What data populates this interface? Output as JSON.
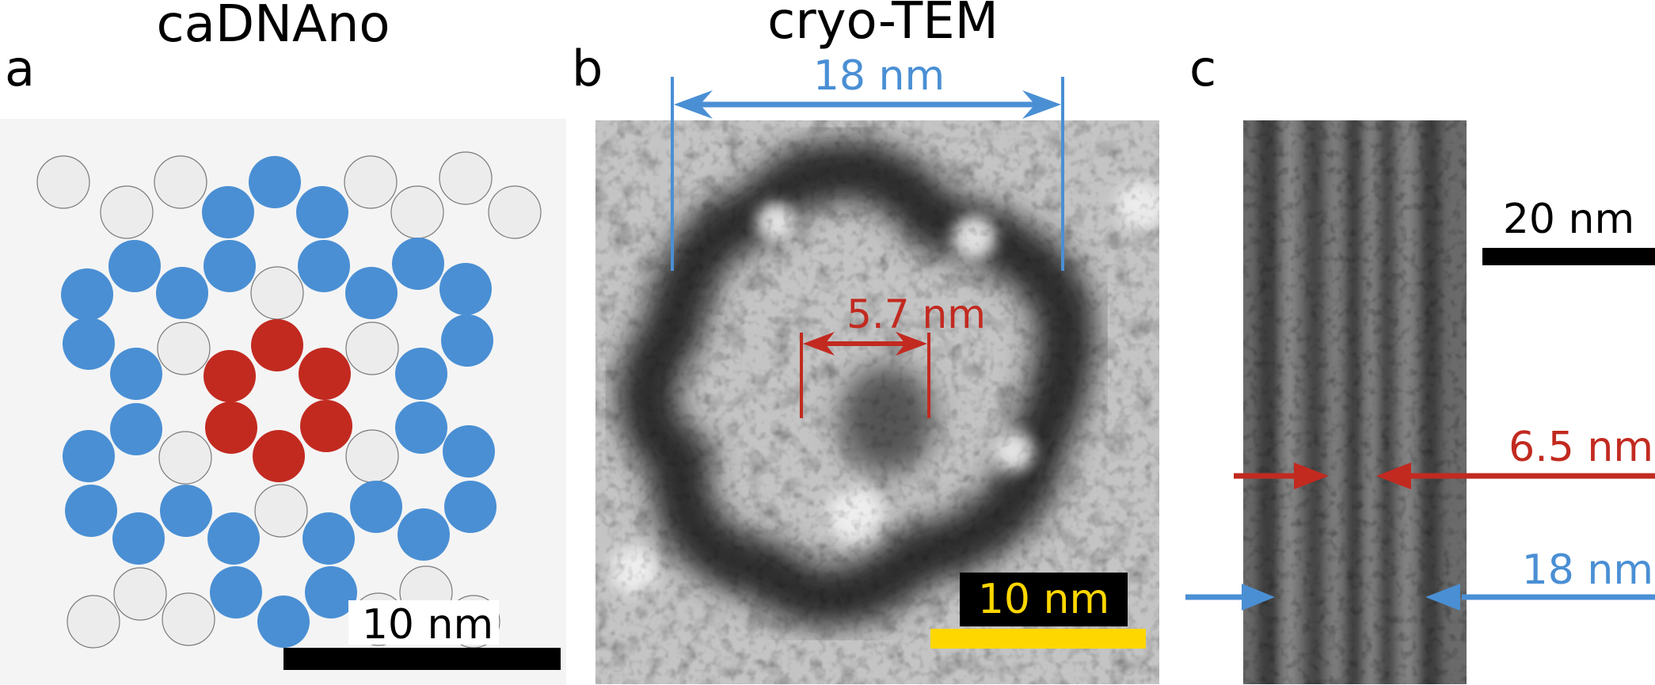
{
  "panel_a": {
    "letter": "a",
    "title": "caDNAno",
    "scalebar_label": "10 nm",
    "colors": {
      "gray": "#ececec",
      "blue": "#4a8fd4",
      "red": "#c22a20",
      "background": "#f4f4f4"
    }
  },
  "panel_b": {
    "letter": "b",
    "title": "cryo-TEM",
    "outer_label": "18 nm",
    "inner_label": "5.7 nm",
    "scalebar_label": "10 nm",
    "colors": {
      "outer": "#4a8fd4",
      "inner": "#c22a20",
      "scalebar": "#ffd700"
    }
  },
  "panel_c": {
    "letter": "c",
    "scalebar_label": "20 nm",
    "inner_label": "6.5 nm",
    "outer_label": "18 nm",
    "colors": {
      "inner": "#c22a20",
      "outer": "#4a8fd4"
    }
  }
}
